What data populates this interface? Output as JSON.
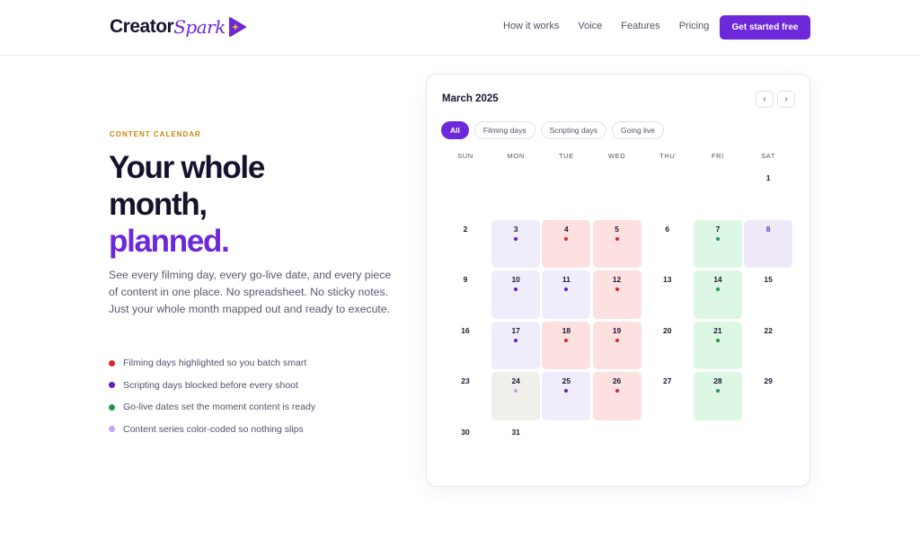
{
  "nav": {
    "brand": "Creator",
    "brand_accent": "Spark",
    "links": [
      "How it works",
      "Voice",
      "Features",
      "Pricing"
    ],
    "cta": "Get started free"
  },
  "hero": {
    "eyebrow": "CONTENT CALENDAR",
    "title_lines": [
      "Your whole",
      "month,"
    ],
    "title_accent": "planned.",
    "body": "See every filming day, every go-live date, and every piece of content in one place. No spreadsheet. No sticky notes. Just your whole month mapped out and ready to execute.",
    "bullets": [
      {
        "text": "Filming days highlighted so you batch smart",
        "color": "#d42a2a"
      },
      {
        "text": "Scripting days blocked before every shoot",
        "color": "#5b21c6"
      },
      {
        "text": "Go-live dates set the moment content is ready",
        "color": "#1e9a46"
      },
      {
        "text": "Content series color-coded so nothing slips",
        "color": "#c0a6f0"
      }
    ]
  },
  "calendar": {
    "month": "March 2025",
    "prev": "‹",
    "next": "›",
    "filters": [
      "All",
      "Filming days",
      "Scripting days",
      "Going live"
    ],
    "active_filter": 0,
    "weekdays": [
      "SUN",
      "MON",
      "TUE",
      "WED",
      "THU",
      "FRI",
      "SAT"
    ],
    "weeks": [
      [
        null,
        null,
        null,
        null,
        null,
        null,
        {
          "day": 1
        }
      ],
      [
        {
          "day": 2
        },
        {
          "day": 3,
          "bg": "#efedfc",
          "dot": "#5b21c6"
        },
        {
          "day": 4,
          "bg": "#fde0e0",
          "dot": "#d42a2a"
        },
        {
          "day": 5,
          "bg": "#fde0e0",
          "dot": "#d42a2a"
        },
        {
          "day": 6
        },
        {
          "day": 7,
          "bg": "#dcf7e4",
          "dot": "#1e9a46"
        },
        {
          "day": 8,
          "bg": "#efe8f9",
          "text": "#6d28d9"
        }
      ],
      [
        {
          "day": 9
        },
        {
          "day": 10,
          "bg": "#efedfc",
          "dot": "#5b21c6"
        },
        {
          "day": 11,
          "bg": "#efedfc",
          "dot": "#5b21c6"
        },
        {
          "day": 12,
          "bg": "#fde0e0",
          "dot": "#d42a2a"
        },
        {
          "day": 13
        },
        {
          "day": 14,
          "bg": "#dcf7e4",
          "dot": "#1e9a46"
        },
        {
          "day": 15
        }
      ],
      [
        {
          "day": 16
        },
        {
          "day": 17,
          "bg": "#efedfc",
          "dot": "#5b21c6"
        },
        {
          "day": 18,
          "bg": "#fde0e0",
          "dot": "#d42a2a"
        },
        {
          "day": 19,
          "bg": "#fde0e0",
          "dot": "#d42a2a"
        },
        {
          "day": 20
        },
        {
          "day": 21,
          "bg": "#dcf7e4",
          "dot": "#1e9a46"
        },
        {
          "day": 22
        }
      ],
      [
        {
          "day": 23
        },
        {
          "day": 24,
          "bg": "#f1efeb",
          "dot": "#c0a6f0"
        },
        {
          "day": 25,
          "bg": "#efedfc",
          "dot": "#5b21c6"
        },
        {
          "day": 26,
          "bg": "#fde0e0",
          "dot": "#d42a2a"
        },
        {
          "day": 27
        },
        {
          "day": 28,
          "bg": "#dcf7e4",
          "dot": "#1e9a46"
        },
        {
          "day": 29
        }
      ],
      [
        {
          "day": 30
        },
        {
          "day": 31
        },
        null,
        null,
        null,
        null,
        null
      ]
    ]
  }
}
